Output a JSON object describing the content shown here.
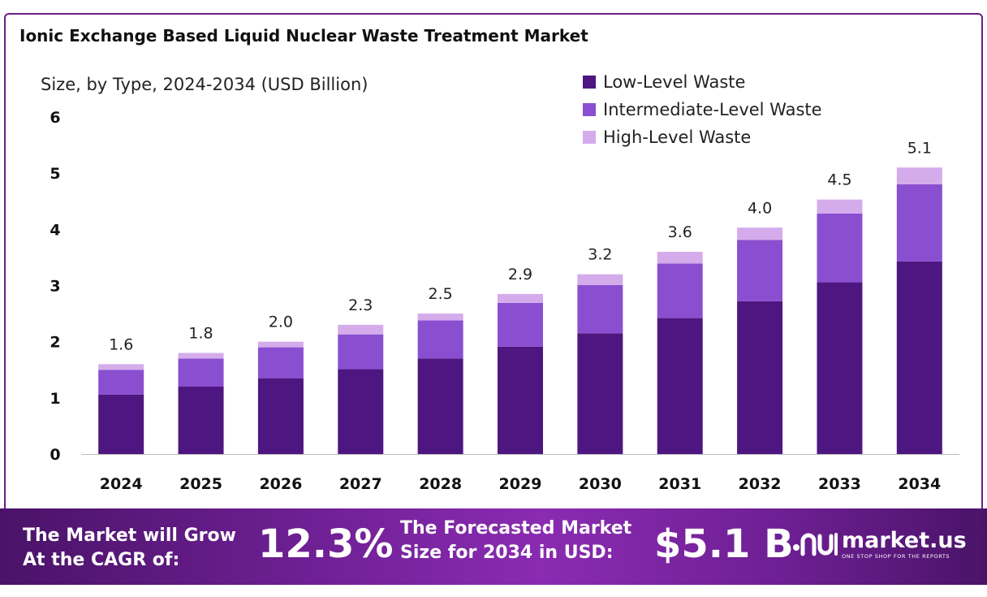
{
  "chart_data": {
    "type": "bar",
    "stacked": true,
    "title": "Ionic Exchange Based Liquid Nuclear Waste Treatment Market",
    "subtitle": "Size, by Type, 2024-2034 (USD Billion)",
    "categories": [
      "2024",
      "2025",
      "2026",
      "2027",
      "2028",
      "2029",
      "2030",
      "2031",
      "2032",
      "2033",
      "2034"
    ],
    "series": [
      {
        "name": "Low-Level Waste",
        "color": "#4e1680",
        "values": [
          1.06,
          1.2,
          1.35,
          1.51,
          1.7,
          1.91,
          2.15,
          2.42,
          2.72,
          3.06,
          3.43
        ]
      },
      {
        "name": "Intermediate-Level Waste",
        "color": "#8a4fd0",
        "values": [
          0.44,
          0.5,
          0.55,
          0.62,
          0.68,
          0.78,
          0.86,
          0.97,
          1.09,
          1.22,
          1.37
        ]
      },
      {
        "name": "High-Level Waste",
        "color": "#d5aceb",
        "values": [
          0.1,
          0.1,
          0.1,
          0.17,
          0.12,
          0.16,
          0.19,
          0.21,
          0.22,
          0.25,
          0.3
        ]
      }
    ],
    "totals": [
      "1.6",
      "1.8",
      "2.0",
      "2.3",
      "2.5",
      "2.9",
      "3.2",
      "3.6",
      "4.0",
      "4.5",
      "5.1"
    ],
    "y_ticks": [
      "0",
      "1",
      "2",
      "3",
      "4",
      "5",
      "6"
    ],
    "ylim": [
      0,
      6
    ],
    "grid": false,
    "legend_position": "top-right"
  },
  "banner": {
    "cagr_label": "The Market will Grow At the CAGR of:",
    "cagr_value": "12.3%",
    "forecast_label": "The Forecasted Market Size for 2034 in USD:",
    "forecast_value": "$5.1 B",
    "brand_name": "market.us",
    "brand_tagline": "ONE STOP SHOP FOR THE REPORTS"
  }
}
